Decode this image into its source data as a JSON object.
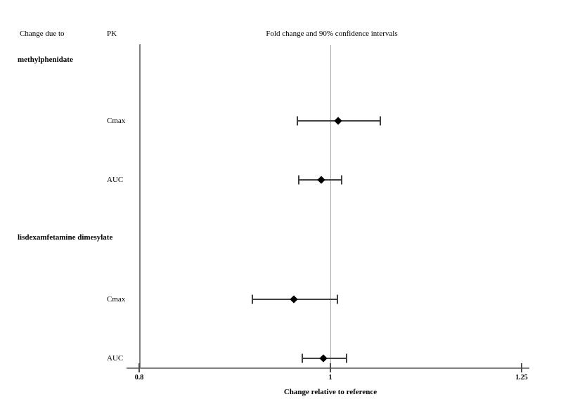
{
  "colors": {
    "axis": "#808080",
    "reference_line": "#a9a9a9",
    "errorbar": "#404040",
    "marker": "#000000",
    "text": "#000000"
  },
  "chart_data": {
    "type": "forest",
    "title": "Fold change and 90% confidence intervals",
    "xlabel": "Change relative to reference",
    "ci_level": "90%",
    "x_scale": "log",
    "xlim": [
      0.8,
      1.25
    ],
    "x_ticks": [
      0.8,
      1,
      1.25
    ],
    "x_tick_labels": [
      "0.8",
      "1",
      "1.25"
    ],
    "reference_line": 1,
    "col_headers": {
      "group": "Change due to",
      "pk": "PK"
    },
    "groups": [
      {
        "name": "methylphenidate",
        "rows": [
          {
            "pk": "Cmax",
            "estimate": 1.009,
            "ci_low": 0.962,
            "ci_high": 1.06
          },
          {
            "pk": "AUC",
            "estimate": 0.989,
            "ci_low": 0.964,
            "ci_high": 1.013
          }
        ]
      },
      {
        "name": "lisdexamfetamine dimesylate",
        "rows": [
          {
            "pk": "Cmax",
            "estimate": 0.958,
            "ci_low": 0.913,
            "ci_high": 1.008
          },
          {
            "pk": "AUC",
            "estimate": 0.992,
            "ci_low": 0.968,
            "ci_high": 1.019
          }
        ]
      }
    ]
  }
}
